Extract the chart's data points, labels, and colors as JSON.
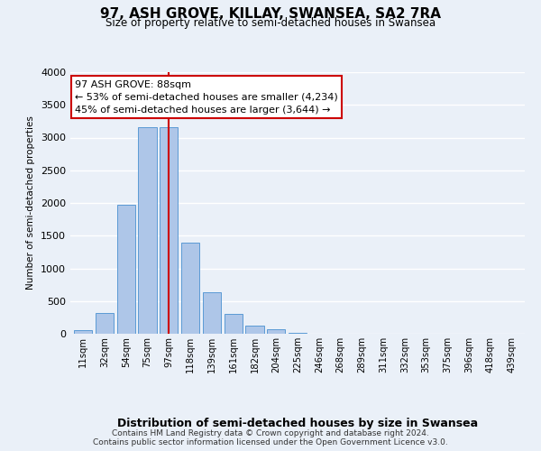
{
  "title": "97, ASH GROVE, KILLAY, SWANSEA, SA2 7RA",
  "subtitle": "Size of property relative to semi-detached houses in Swansea",
  "xlabel": "Distribution of semi-detached houses by size in Swansea",
  "ylabel": "Number of semi-detached properties",
  "bar_labels": [
    "11sqm",
    "32sqm",
    "54sqm",
    "75sqm",
    "97sqm",
    "118sqm",
    "139sqm",
    "161sqm",
    "182sqm",
    "204sqm",
    "225sqm",
    "246sqm",
    "268sqm",
    "289sqm",
    "311sqm",
    "332sqm",
    "353sqm",
    "375sqm",
    "396sqm",
    "418sqm",
    "439sqm"
  ],
  "bar_values": [
    50,
    320,
    1970,
    3160,
    3160,
    1400,
    640,
    310,
    130,
    70,
    20,
    5,
    2,
    1,
    0,
    0,
    0,
    0,
    0,
    0,
    0
  ],
  "bar_color": "#aec6e8",
  "bar_edge_color": "#5b9bd5",
  "highlight_bar_index": 4,
  "highlight_line_color": "#cc0000",
  "ylim": [
    0,
    4000
  ],
  "yticks": [
    0,
    500,
    1000,
    1500,
    2000,
    2500,
    3000,
    3500,
    4000
  ],
  "annotation_title": "97 ASH GROVE: 88sqm",
  "annotation_line1": "← 53% of semi-detached houses are smaller (4,234)",
  "annotation_line2": "45% of semi-detached houses are larger (3,644) →",
  "annotation_box_color": "#ffffff",
  "annotation_box_edge": "#cc0000",
  "footer_line1": "Contains HM Land Registry data © Crown copyright and database right 2024.",
  "footer_line2": "Contains public sector information licensed under the Open Government Licence v3.0.",
  "bg_color": "#eaf0f8",
  "plot_bg_color": "#eaf0f8",
  "grid_color": "#ffffff"
}
